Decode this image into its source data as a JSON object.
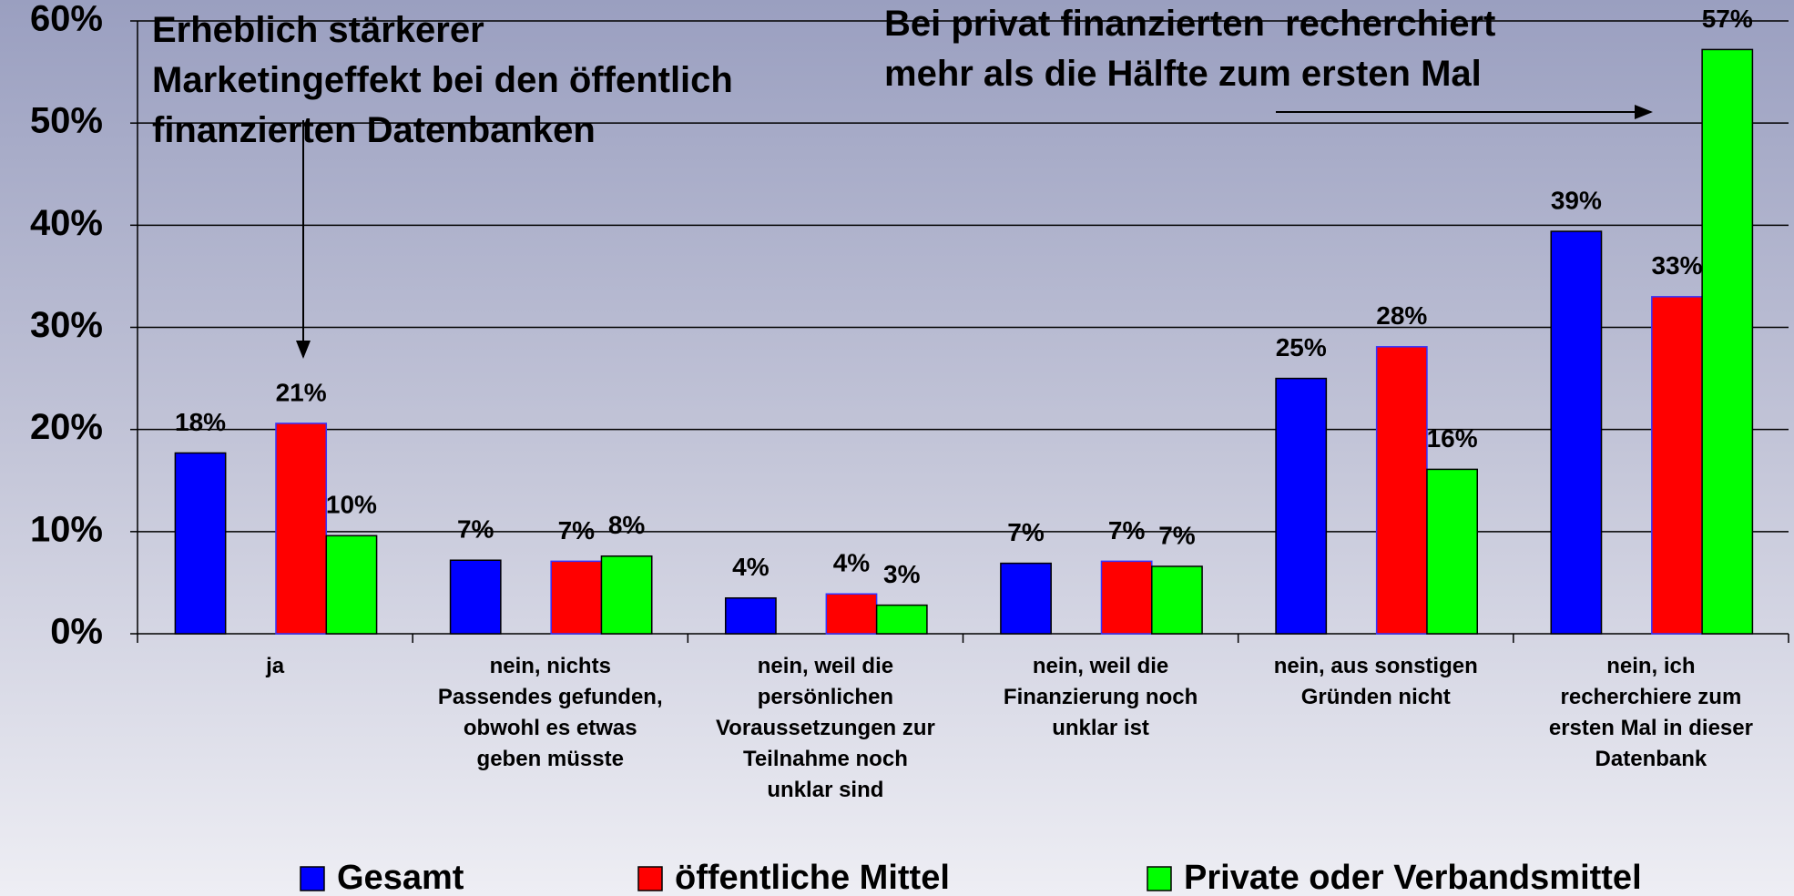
{
  "chart_data": {
    "type": "bar",
    "categories": [
      "ja",
      "nein, nichts\nPassendes gefunden,\nobwohl es etwas\ngeben müsste",
      "nein, weil die\npersönlichen\nVoraussetzungen zur\nTeilnahme noch\nunklar sind",
      "nein, weil die\nFinanzierung noch\nunklar ist",
      "nein, aus sonstigen\nGründen nicht",
      "nein, ich\nrecherchiere zum\nersten Mal in dieser\nDatenbank"
    ],
    "series": [
      {
        "name": "Gesamt",
        "color": "#0000ff",
        "values": [
          17.7,
          7.2,
          3.5,
          6.9,
          25.0,
          39.4
        ],
        "value_labels": [
          "18%",
          "7%",
          "4%",
          "7%",
          "25%",
          "39%"
        ]
      },
      {
        "name": "öffentliche Mittel",
        "color": "#ff0000",
        "values": [
          20.6,
          7.1,
          3.9,
          7.1,
          28.1,
          33.0
        ],
        "value_labels": [
          "21%",
          "7%",
          "4%",
          "7%",
          "28%",
          "33%"
        ]
      },
      {
        "name": "Private oder Verbandsmittel",
        "color": "#00ff00",
        "values": [
          9.6,
          7.6,
          2.8,
          6.6,
          16.1,
          57.2
        ],
        "value_labels": [
          "10%",
          "8%",
          "3%",
          "7%",
          "16%",
          "57%"
        ]
      }
    ],
    "ylim": [
      0,
      60
    ],
    "yticks": [
      {
        "value": 0,
        "label": "0%"
      },
      {
        "value": 10,
        "label": "10%"
      },
      {
        "value": 20,
        "label": "20%"
      },
      {
        "value": 30,
        "label": "30%"
      },
      {
        "value": 40,
        "label": "40%"
      },
      {
        "value": 50,
        "label": "50%"
      },
      {
        "value": 60,
        "label": "60%"
      }
    ],
    "grid": true,
    "legend": "bottom",
    "annotations": [
      "Erheblich stärkerer\nMarketingeffekt bei den öffentlich\nfinanzierten Datenbanken",
      "Bei privat finanzierten  recherchiert\nmehr als die Hälfte zum ersten Mal"
    ]
  }
}
